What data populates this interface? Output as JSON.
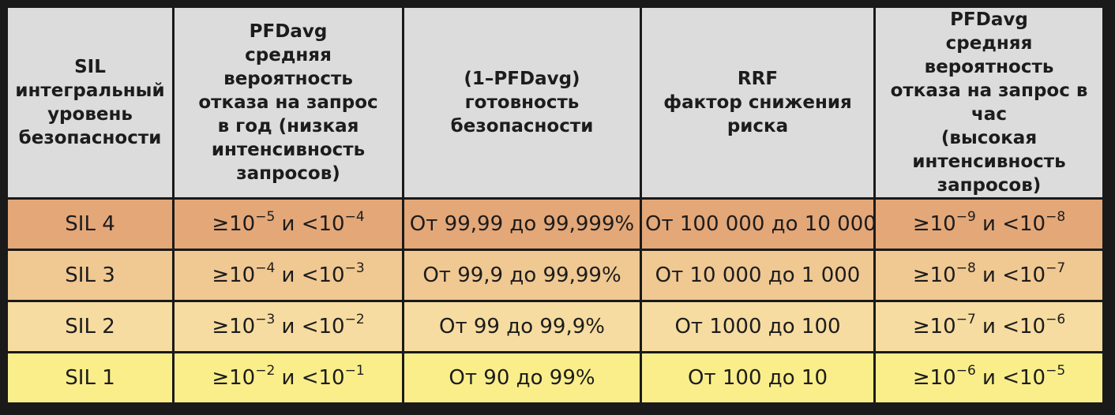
{
  "header": {
    "col1": [
      "SIL",
      "интегральный",
      "уровень",
      "безопасности"
    ],
    "col2": [
      "PFDavg",
      "средняя вероятность",
      "отказа на запрос",
      "в год (низкая",
      "интенсивность",
      "запросов)"
    ],
    "col3": [
      "(1–PFDavg)",
      "готовность",
      "безопасности"
    ],
    "col4": [
      "RRF",
      "фактор снижения",
      "риска"
    ],
    "col5": [
      "PFDavg",
      "средняя вероятность",
      "отказа на запрос в час",
      "(высокая интенсивность",
      "запросов)"
    ]
  },
  "rows": [
    {
      "sil": "SIL 4",
      "bg": "#e4a778",
      "pfd_year": {
        "ge": "≥10",
        "ge_exp": "−5",
        "and": " и ",
        "lt": "<10",
        "lt_exp": "−4"
      },
      "availability": "От 99,99 до 99,999%",
      "rrf": "От 100 000 до 10 000",
      "pfd_hour": {
        "ge": "≥10",
        "ge_exp": "−9",
        "and": " и ",
        "lt": "<10",
        "lt_exp": "−8"
      }
    },
    {
      "sil": "SIL 3",
      "bg": "#f0c892",
      "pfd_year": {
        "ge": "≥10",
        "ge_exp": "−4",
        "and": " и ",
        "lt": "<10",
        "lt_exp": "−3"
      },
      "availability": "От 99,9 до 99,99%",
      "rrf": "От 10 000 до 1 000",
      "pfd_hour": {
        "ge": "≥10",
        "ge_exp": "−8",
        "and": " и ",
        "lt": "<10",
        "lt_exp": "−7"
      }
    },
    {
      "sil": "SIL 2",
      "bg": "#f6dca0",
      "pfd_year": {
        "ge": "≥10",
        "ge_exp": "−3",
        "and": " и ",
        "lt": "<10",
        "lt_exp": "−2"
      },
      "availability": "От 99 до 99,9%",
      "rrf": "От 1000 до 100",
      "pfd_hour": {
        "ge": "≥10",
        "ge_exp": "−7",
        "and": " и ",
        "lt": "<10",
        "lt_exp": "−6"
      }
    },
    {
      "sil": "SIL 1",
      "bg": "#f9ee8a",
      "pfd_year": {
        "ge": "≥10",
        "ge_exp": "−2",
        "and": " и ",
        "lt": "<10",
        "lt_exp": "−1"
      },
      "availability": "От 90 до 99%",
      "rrf": "От 100 до 10",
      "pfd_hour": {
        "ge": "≥10",
        "ge_exp": "−6",
        "and": " и ",
        "lt": "<10",
        "lt_exp": "−5"
      }
    }
  ]
}
